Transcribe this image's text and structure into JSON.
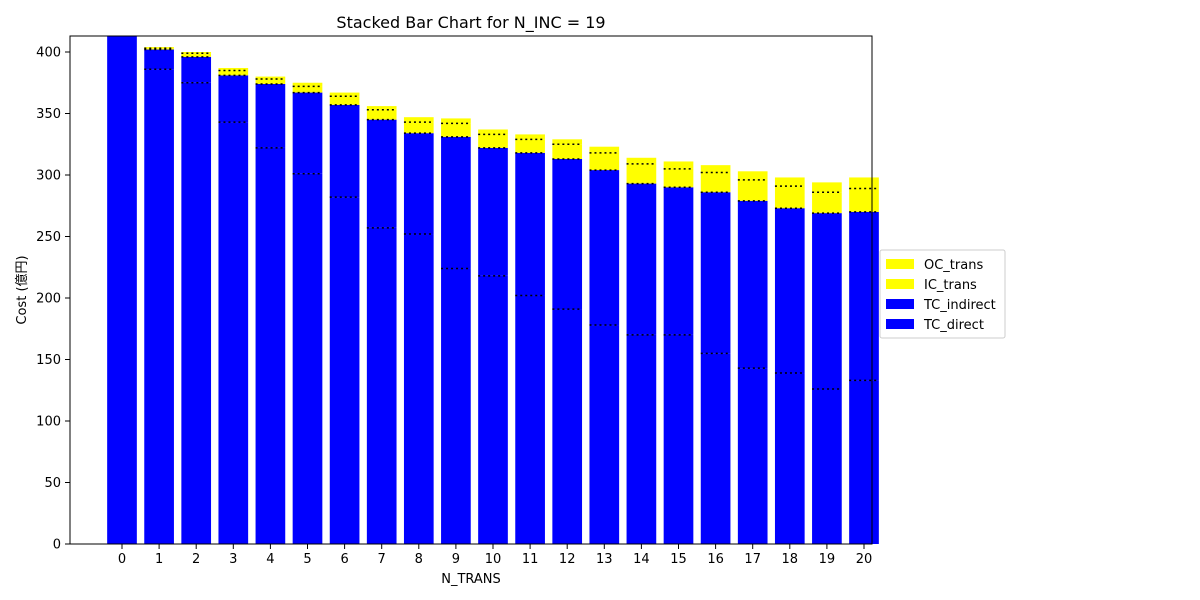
{
  "chart_data": {
    "type": "bar",
    "stacked": true,
    "title": "Stacked Bar Chart for N_INC = 19",
    "xlabel": "N_TRANS",
    "ylabel": "Cost (億円)",
    "categories": [
      "0",
      "1",
      "2",
      "3",
      "4",
      "5",
      "6",
      "7",
      "8",
      "9",
      "10",
      "11",
      "12",
      "13",
      "14",
      "15",
      "16",
      "17",
      "18",
      "19",
      "20"
    ],
    "ylim": [
      0,
      413
    ],
    "yticks": [
      0,
      50,
      100,
      150,
      200,
      250,
      300,
      350,
      400
    ],
    "legend_position": "center-right, outside plot",
    "series": [
      {
        "name": "TC_direct",
        "color": "#0000ff",
        "values": [
          413,
          386,
          375,
          343,
          322,
          301,
          282,
          257,
          252,
          224,
          218,
          202,
          191,
          178,
          170,
          170,
          155,
          143,
          139,
          126,
          133
        ]
      },
      {
        "name": "TC_indirect",
        "color": "#0000ff",
        "values": [
          0,
          16,
          21,
          38,
          52,
          66,
          75,
          88,
          82,
          107,
          104,
          116,
          122,
          126,
          123,
          120,
          131,
          136,
          134,
          143,
          137
        ]
      },
      {
        "name": "IC_trans",
        "color": "#ffff00",
        "values": [
          0,
          1,
          3,
          4,
          4,
          5,
          7,
          8,
          9,
          11,
          11,
          11,
          12,
          14,
          16,
          15,
          16,
          17,
          18,
          17,
          19
        ]
      },
      {
        "name": "OC_trans",
        "color": "#ffff00",
        "values": [
          0,
          1,
          1,
          2,
          2,
          3,
          3,
          3,
          4,
          4,
          4,
          4,
          4,
          5,
          5,
          6,
          6,
          7,
          7,
          8,
          9
        ]
      }
    ],
    "legend_order": [
      "OC_trans",
      "IC_trans",
      "TC_indirect",
      "TC_direct"
    ],
    "boundary_style": "black dotted line at each segment boundary",
    "grid": false
  }
}
